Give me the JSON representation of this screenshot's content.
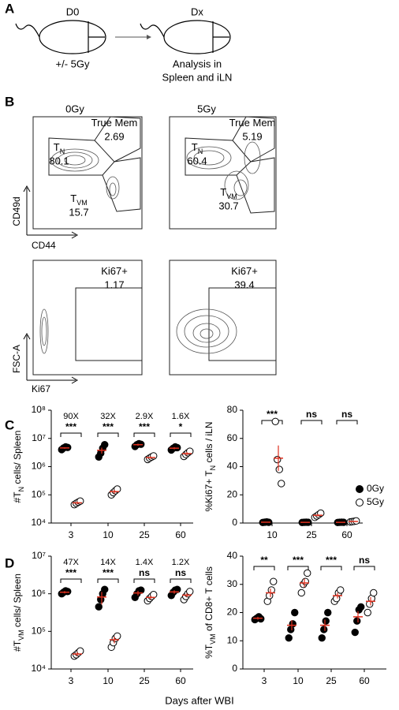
{
  "panel_labels": [
    "A",
    "B",
    "C",
    "D"
  ],
  "diagram": {
    "start": "D0",
    "end": "Dx",
    "treatment": "+/- 5Gy",
    "analysis": [
      "Analysis in",
      "Spleen and iLN"
    ]
  },
  "flow": {
    "columns": [
      "0Gy",
      "5Gy"
    ],
    "axes": {
      "top": {
        "y": "CD49d",
        "x": "CD44"
      },
      "bottom": {
        "y": "FSC-A",
        "x": "Ki67"
      }
    },
    "plots": [
      {
        "gates": [
          {
            "label": [
              "True Mem"
            ],
            "value": "2.69"
          },
          {
            "label": [
              "T",
              "N"
            ],
            "value": "80.1"
          },
          {
            "label": [
              "T",
              "VM"
            ],
            "value": "15.7"
          }
        ]
      },
      {
        "gates": [
          {
            "label": [
              "True Mem"
            ],
            "value": "5.19"
          },
          {
            "label": [
              "T",
              "N"
            ],
            "value": "60.4"
          },
          {
            "label": [
              "T",
              "VM"
            ],
            "value": "30.7"
          }
        ]
      },
      {
        "gates": [
          {
            "label": [
              "Ki67+"
            ],
            "value": "1.17"
          }
        ]
      },
      {
        "gates": [
          {
            "label": [
              "Ki67+"
            ],
            "value": "39.4"
          }
        ]
      }
    ]
  },
  "shared_xlabel": "Days after WBI",
  "chart_data": [
    {
      "type": "dotplot",
      "ylabel": [
        "#T",
        "N",
        " cells/ Spleen"
      ],
      "log": true,
      "categories": [
        "3",
        "10",
        "25",
        "60"
      ],
      "ylim": [
        10000,
        100000000
      ],
      "yticks": [
        {
          "value": 10000,
          "label": "10⁴"
        },
        {
          "value": 100000,
          "label": "10⁵"
        },
        {
          "value": 1000000,
          "label": "10⁶"
        },
        {
          "value": 10000000,
          "label": "10⁷"
        },
        {
          "value": 100000000,
          "label": "10⁸"
        }
      ],
      "fold_change": [
        "90X",
        "32X",
        "2.9X",
        "1.6X"
      ],
      "significance": [
        "***",
        "***",
        "***",
        "*"
      ],
      "error_color": "#e0301e",
      "series": [
        {
          "color": "#000000",
          "filled": true,
          "values": [
            4600000,
            3800000,
            6000000,
            4500000
          ],
          "errors": [
            300000,
            900000,
            500000,
            400000
          ],
          "points": [
            [
              4000000,
              4600000,
              5000000,
              4800000
            ],
            [
              2200000,
              3000000,
              4500000,
              6000000
            ],
            [
              5200000,
              6000000,
              6500000,
              6200000
            ],
            [
              3900000,
              4500000,
              5000000,
              4700000
            ]
          ]
        },
        {
          "color": "#000000",
          "filled": false,
          "values": [
            52000,
            130000,
            2100000,
            2900000
          ],
          "errors": [
            6000,
            20000,
            200000,
            400000
          ],
          "points": [
            [
              45000,
              50000,
              55000,
              60000
            ],
            [
              100000,
              120000,
              140000,
              160000
            ],
            [
              1800000,
              2000000,
              2200000,
              2400000
            ],
            [
              2300000,
              2700000,
              3100000,
              3500000
            ]
          ]
        }
      ]
    },
    {
      "type": "dotplot",
      "ylabel": [
        "%Ki67+ T",
        "N",
        " cells / iLN"
      ],
      "log": false,
      "categories": [
        "10",
        "25",
        "60"
      ],
      "ylim": [
        0,
        80
      ],
      "yticks": [
        0,
        20,
        40,
        60,
        80
      ],
      "significance": [
        "***",
        "ns",
        "ns"
      ],
      "error_color": "#e0301e",
      "legend": true,
      "series": [
        {
          "name": "0Gy",
          "color": "#000000",
          "filled": true,
          "values": [
            0.6,
            0.5,
            0.5
          ],
          "errors": [
            0.2,
            0.1,
            0.1
          ],
          "points": [
            [
              0.4,
              0.6,
              0.8,
              0.5
            ],
            [
              0.4,
              0.5,
              0.6,
              0.5
            ],
            [
              0.4,
              0.5,
              0.6,
              0.5
            ]
          ]
        },
        {
          "name": "5Gy",
          "color": "#000000",
          "filled": false,
          "values": [
            46,
            5.5,
            1.1
          ],
          "errors": [
            9,
            0.8,
            0.2
          ],
          "points": [
            [
              72,
              45,
              38,
              28
            ],
            [
              4,
              5,
              6,
              7
            ],
            [
              0.8,
              1,
              1.2,
              1.5
            ]
          ]
        }
      ]
    },
    {
      "type": "dotplot",
      "ylabel": [
        "#T",
        "VM",
        " cells/ Spleen"
      ],
      "log": true,
      "categories": [
        "3",
        "10",
        "25",
        "60"
      ],
      "ylim": [
        10000,
        10000000
      ],
      "yticks": [
        {
          "value": 10000,
          "label": "10⁴"
        },
        {
          "value": 100000,
          "label": "10⁵"
        },
        {
          "value": 1000000,
          "label": "10⁶"
        },
        {
          "value": 10000000,
          "label": "10⁷"
        }
      ],
      "fold_change": [
        "47X",
        "14X",
        "1.4X",
        "1.2X"
      ],
      "significance": [
        "***",
        "***",
        "ns",
        "ns"
      ],
      "error_color": "#e0301e",
      "series": [
        {
          "color": "#000000",
          "filled": true,
          "values": [
            1100000,
            820000,
            1050000,
            1120000
          ],
          "errors": [
            80000,
            300000,
            150000,
            120000
          ],
          "points": [
            [
              1000000,
              1100000,
              1200000,
              1150000
            ],
            [
              450000,
              700000,
              1000000,
              1300000
            ],
            [
              800000,
              1000000,
              1200000,
              1250000
            ],
            [
              900000,
              1100000,
              1250000,
              1300000
            ]
          ]
        },
        {
          "color": "#000000",
          "filled": false,
          "values": [
            25000,
            60000,
            800000,
            920000
          ],
          "errors": [
            3000,
            12000,
            80000,
            100000
          ],
          "points": [
            [
              22000,
              24000,
              27000,
              30000
            ],
            [
              38000,
              50000,
              65000,
              75000
            ],
            [
              650000,
              750000,
              850000,
              950000
            ],
            [
              700000,
              850000,
              1000000,
              1150000
            ]
          ]
        }
      ]
    },
    {
      "type": "dotplot",
      "ylabel": [
        "%T",
        "VM",
        " of CD8+ T cells"
      ],
      "log": false,
      "categories": [
        "3",
        "10",
        "25",
        "60"
      ],
      "ylim": [
        0,
        40
      ],
      "yticks": [
        0,
        10,
        20,
        30,
        40
      ],
      "significance": [
        "**",
        "***",
        "***",
        "ns"
      ],
      "error_color": "#e0301e",
      "series": [
        {
          "color": "#000000",
          "filled": true,
          "values": [
            18,
            15.5,
            15.5,
            18.5
          ],
          "errors": [
            0.5,
            1.8,
            2,
            2
          ],
          "points": [
            [
              17.5,
              18,
              18.5,
              17.8
            ],
            [
              11,
              14,
              16,
              20
            ],
            [
              11,
              14,
              17,
              20
            ],
            [
              13,
              17,
              21,
              22
            ]
          ]
        },
        {
          "color": "#000000",
          "filled": false,
          "values": [
            27,
            30.5,
            26,
            24
          ],
          "errors": [
            1.5,
            1.5,
            1,
            1.5
          ],
          "points": [
            [
              24,
              26,
              28,
              31
            ],
            [
              27,
              30,
              31,
              34
            ],
            [
              24,
              25,
              27,
              28
            ],
            [
              20,
              23,
              25,
              27
            ]
          ]
        }
      ]
    }
  ]
}
